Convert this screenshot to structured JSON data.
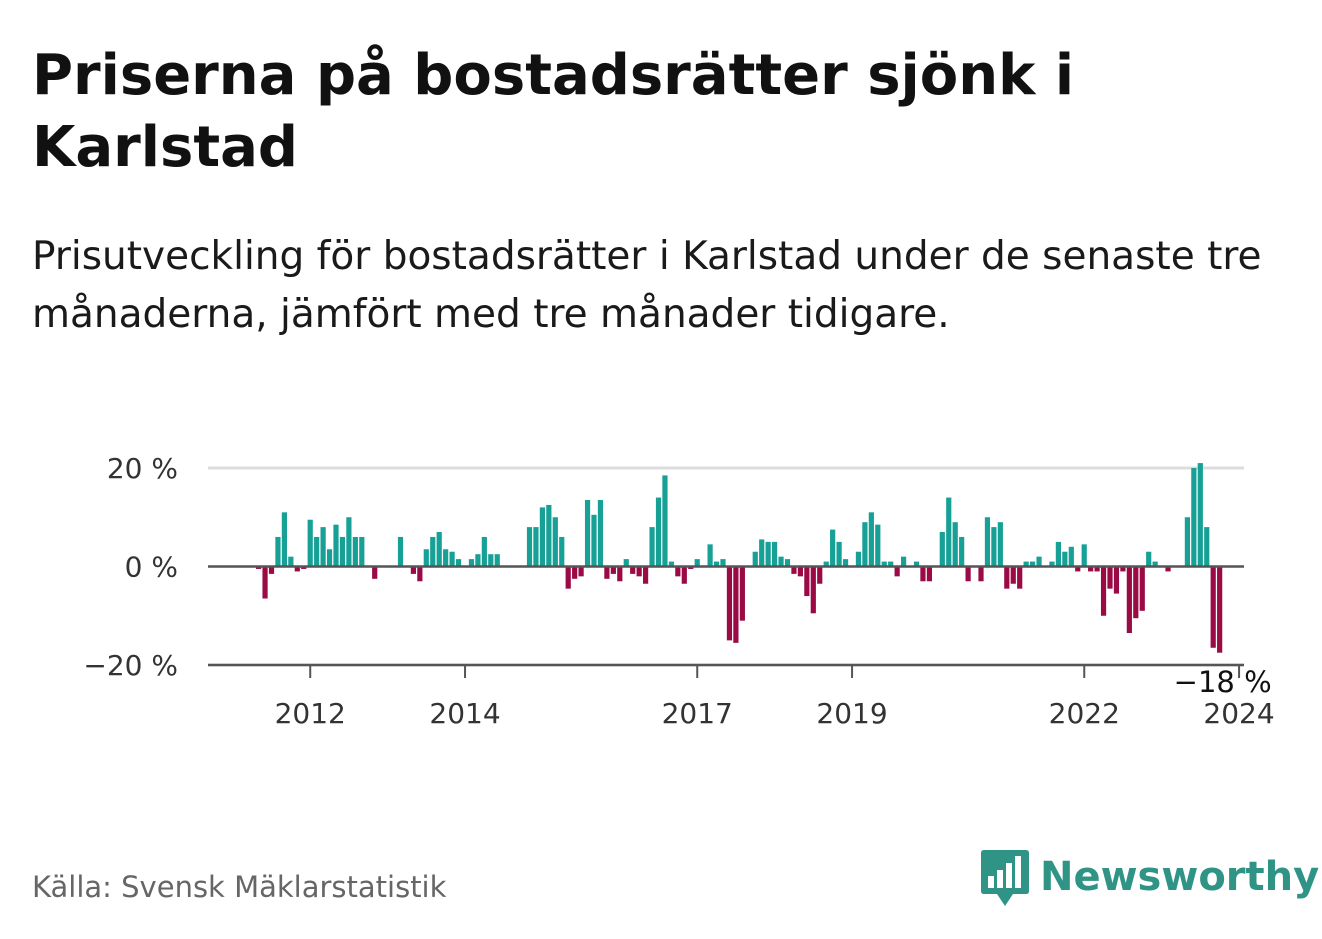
{
  "title": "Priserna på bostadsrätter sjönk i Karlstad",
  "subtitle": "Prisutveckling för bostadsrätter i Karlstad under de senaste tre månaderna, jämfört med tre månader tidigare.",
  "source": "Källa: Svensk Mäklarstatistik",
  "brand": "Newsworthy",
  "colors": {
    "positive": "#17a196",
    "negative": "#9a0b45",
    "brand": "#2f9485",
    "grid": "#dddddd",
    "zero": "#555555"
  },
  "chart_data": {
    "type": "bar",
    "ylim": [
      -20,
      20
    ],
    "yticks": [
      20,
      0,
      -20
    ],
    "ytick_labels": [
      "20 %",
      "0 %",
      "−20 %"
    ],
    "x_start": 2011.333,
    "x_step": 0.08333,
    "xticks": [
      2012,
      2014,
      2017,
      2019,
      2022,
      2024
    ],
    "xtick_labels": [
      "2012",
      "2014",
      "2017",
      "2019",
      "2022",
      "2024"
    ],
    "last_value_label": "−18 %",
    "values": [
      -0.5,
      -6.5,
      -1.5,
      6,
      11,
      2,
      -1,
      -0.5,
      9.5,
      6,
      8,
      3.5,
      8.5,
      6,
      10,
      6,
      6,
      0,
      -2.5,
      0,
      0,
      0,
      6,
      0,
      -1.5,
      -3,
      3.5,
      6,
      7,
      3.5,
      3,
      1.5,
      0,
      1.5,
      2.5,
      6,
      2.5,
      2.5,
      0,
      0,
      0,
      0,
      8,
      8,
      12,
      12.5,
      10,
      6,
      -4.5,
      -2.5,
      -2,
      13.5,
      10.5,
      13.5,
      -2.5,
      -1.5,
      -3,
      1.5,
      -1.5,
      -2,
      -3.5,
      8,
      14,
      18.5,
      1,
      -2,
      -3.5,
      -0.5,
      1.5,
      0,
      4.5,
      1,
      1.5,
      -15,
      -15.5,
      -11,
      0,
      3,
      5.5,
      5,
      5,
      2,
      1.5,
      -1.5,
      -2,
      -6,
      -9.5,
      -3.5,
      1,
      7.5,
      5,
      1.5,
      0,
      3,
      9,
      11,
      8.5,
      1,
      1,
      -2,
      2,
      0,
      1,
      -3,
      -3,
      0,
      7,
      14,
      9,
      6,
      -3,
      0,
      -3,
      10,
      8,
      9,
      -4.5,
      -3.5,
      -4.5,
      1,
      1,
      2,
      0,
      1,
      5,
      3,
      4,
      -1,
      4.5,
      -1,
      -1,
      -10,
      -4.5,
      -5.5,
      -1,
      -13.5,
      -10.5,
      -9,
      3,
      1,
      0,
      -1,
      0,
      0,
      10,
      20,
      21,
      8,
      -16.5,
      -17.5
    ]
  }
}
